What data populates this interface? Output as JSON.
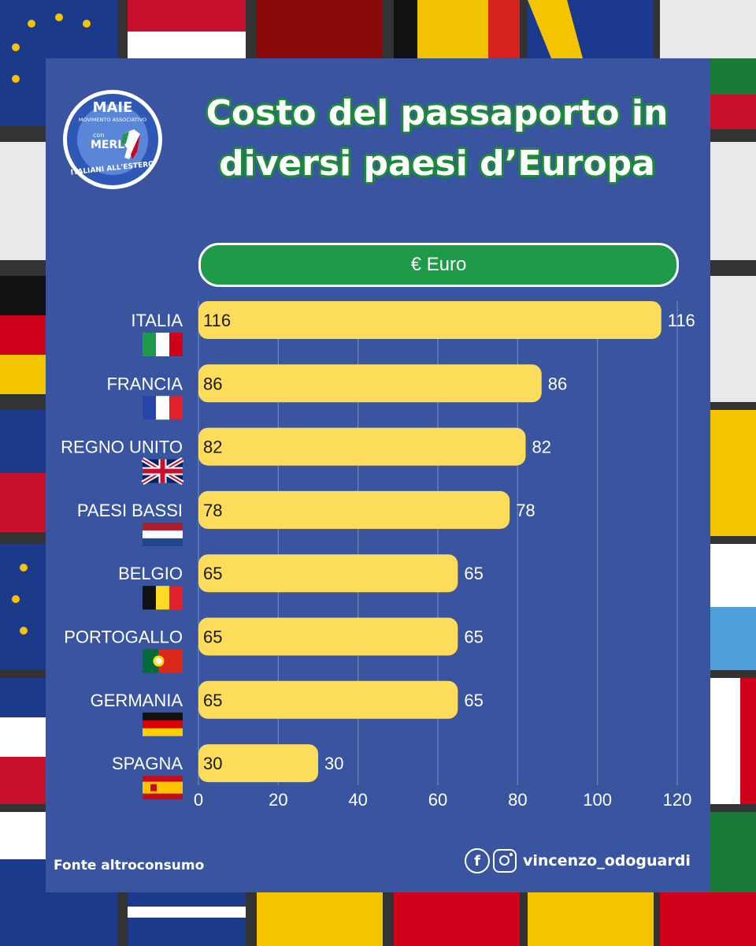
{
  "header": {
    "title_line1": "Costo del passaporto in",
    "title_line2": "diversi paesi d’Europa",
    "unit_label": "€ Euro"
  },
  "logo": {
    "name": "MAIE",
    "subtitle": "MOVIMENTO ASSOCIATIVO",
    "con": "con",
    "merlo": "MERLO",
    "ring_text": "ITALIANI ALL'ESTERO"
  },
  "footer": {
    "source": "Fonte altroconsumo",
    "handle": "vincenzo_odoguardi",
    "facebook_icon": "facebook-icon",
    "instagram_icon": "instagram-icon"
  },
  "colors": {
    "panel": "#3a55a0",
    "bar": "#fddc5c",
    "pill": "#1e9a48",
    "title_outline": "#1d8a3a"
  },
  "chart_data": {
    "type": "bar",
    "orientation": "horizontal",
    "categories": [
      "ITALIA",
      "FRANCIA",
      "REGNO UNITO",
      "PAESI BASSI",
      "BELGIO",
      "PORTOGALLO",
      "GERMANIA",
      "SPAGNA"
    ],
    "flags": [
      "italy-flag-icon",
      "france-flag-icon",
      "uk-flag-icon",
      "netherlands-flag-icon",
      "belgium-flag-icon",
      "portugal-flag-icon",
      "germany-flag-icon",
      "spain-flag-icon"
    ],
    "values": [
      116,
      86,
      82,
      78,
      65,
      65,
      65,
      30
    ],
    "xlim": [
      0,
      120
    ],
    "xticks": [
      0,
      20,
      40,
      60,
      80,
      100,
      120
    ],
    "grid": true,
    "unit": "€ Euro"
  }
}
